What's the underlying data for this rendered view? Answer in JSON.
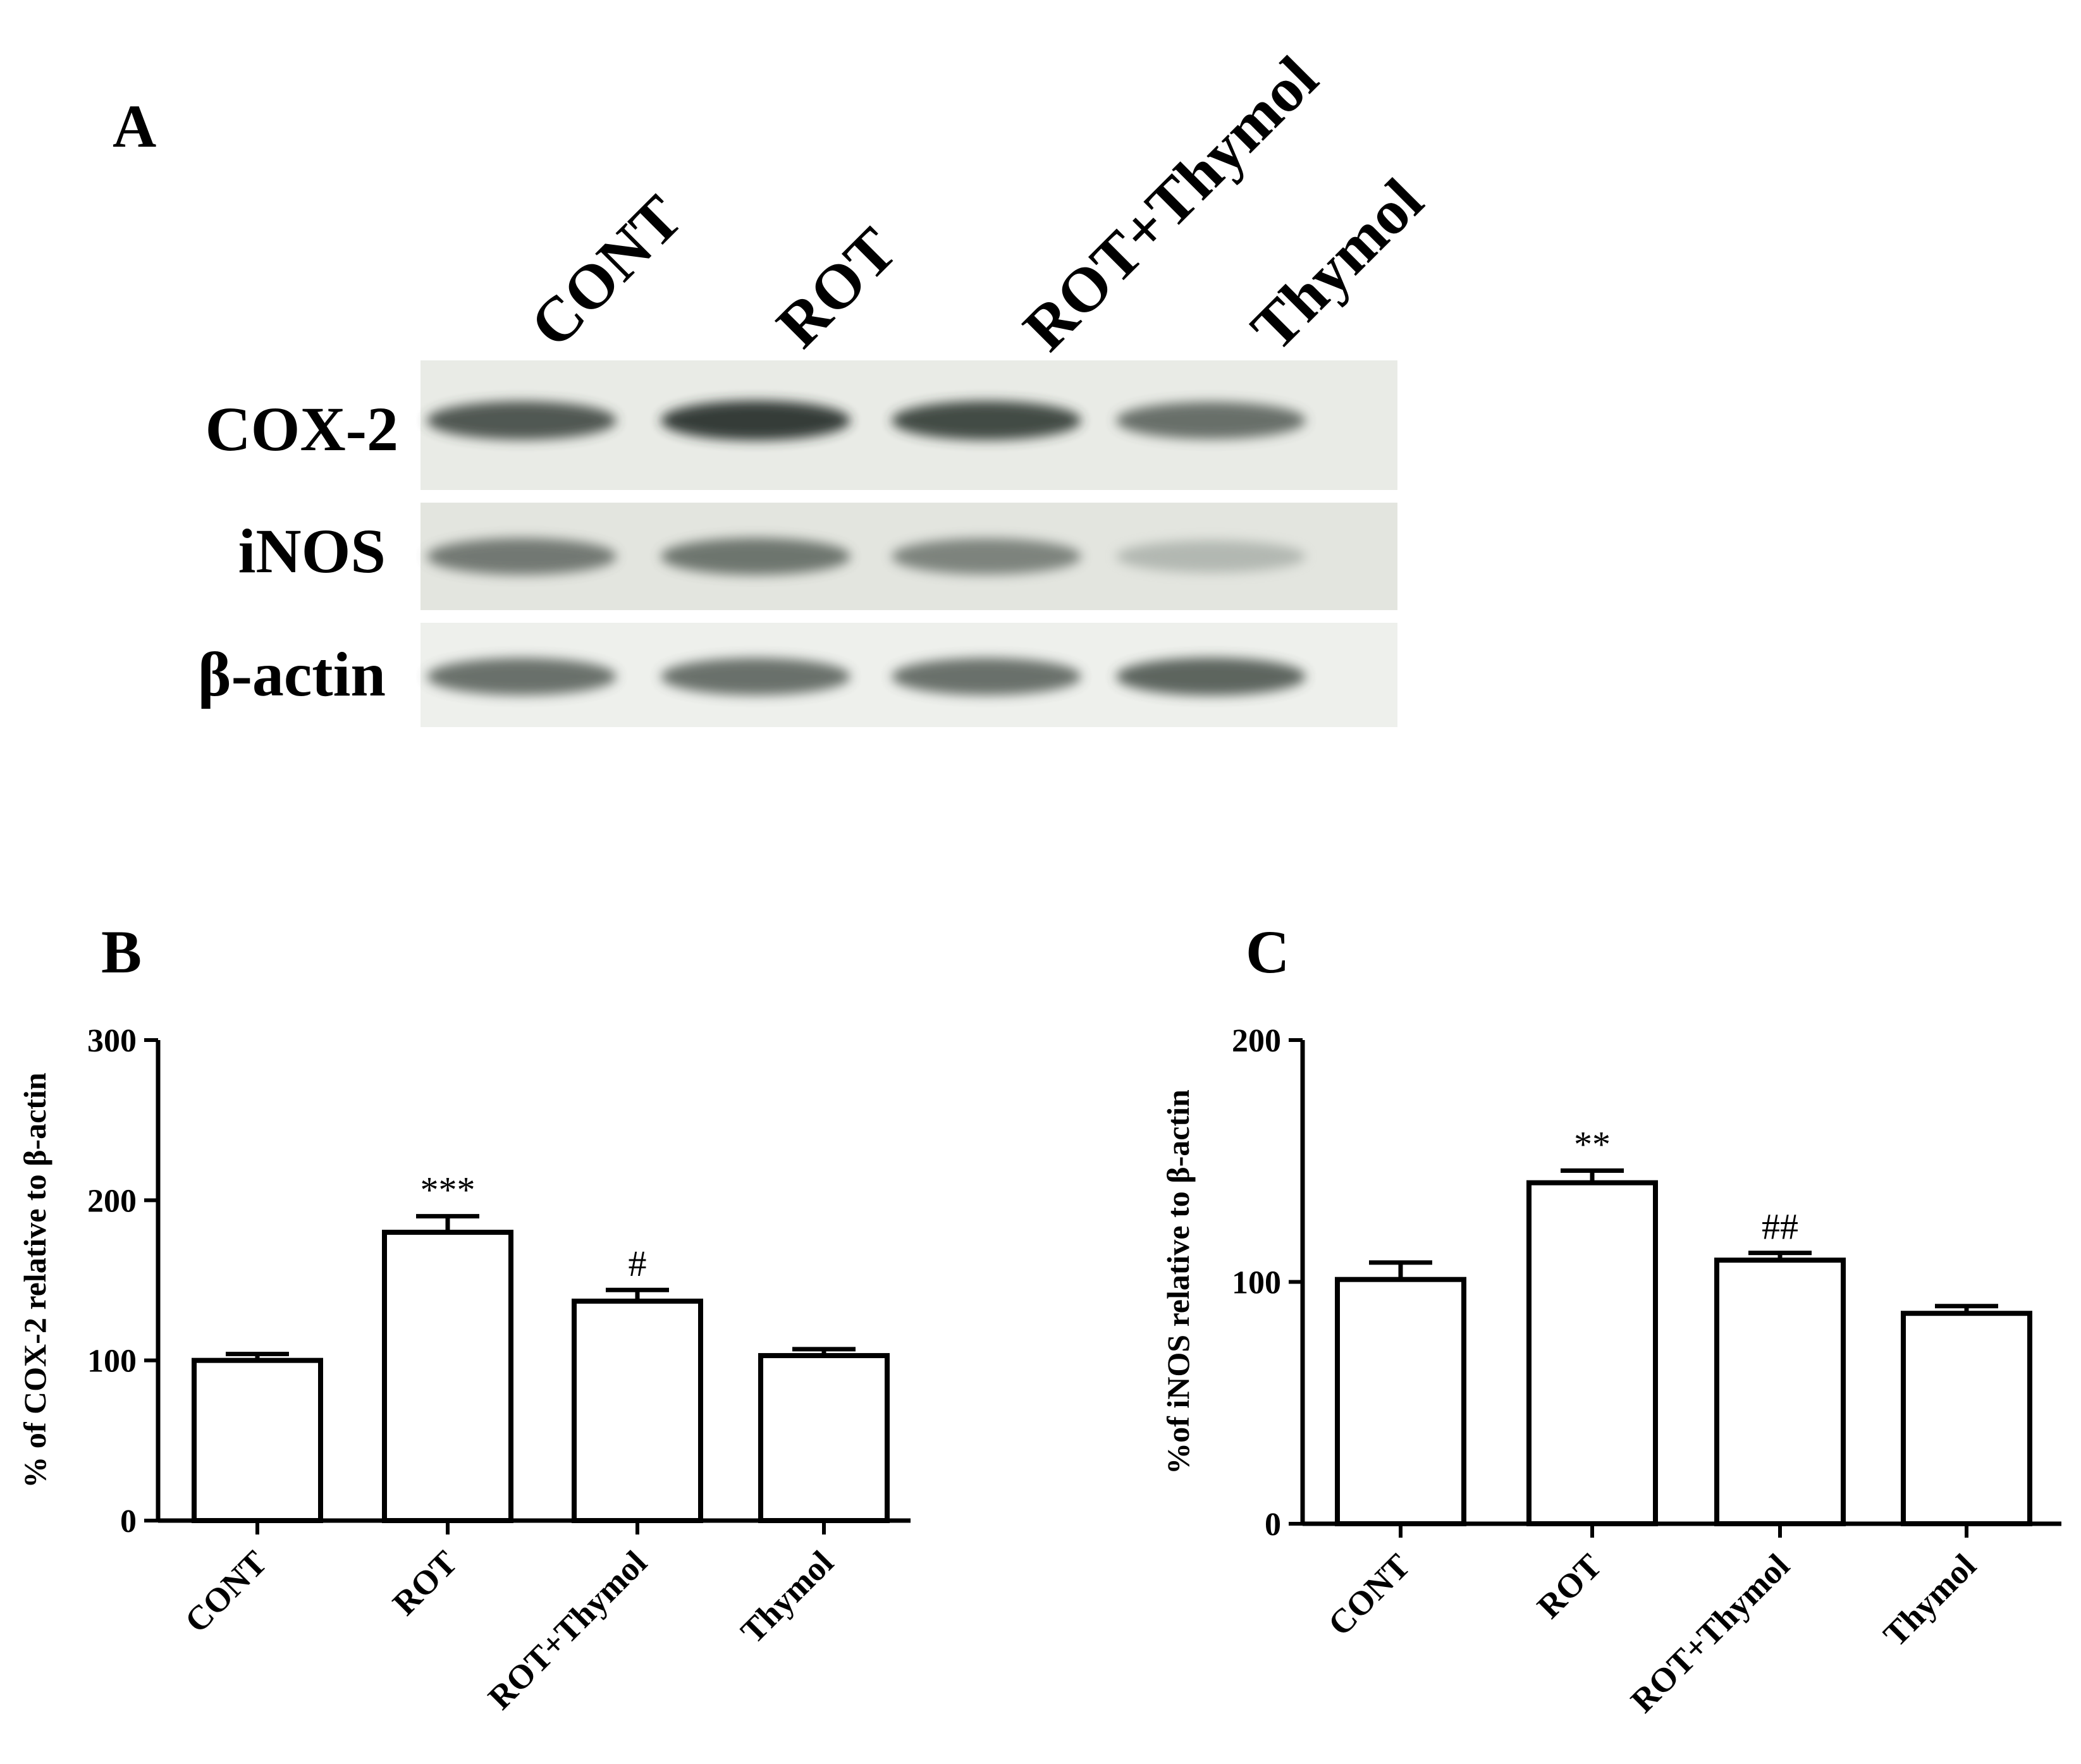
{
  "panel_a": {
    "letter": "A",
    "lanes": [
      "CONT",
      "ROT",
      "ROT+Thymol",
      "Thymol"
    ],
    "blot_rows": [
      {
        "label": "COX-2",
        "band_intensity": [
          0.85,
          0.95,
          0.9,
          0.75
        ]
      },
      {
        "label": "iNOS",
        "band_intensity": [
          0.7,
          0.72,
          0.65,
          0.35
        ]
      },
      {
        "label": "β-actin",
        "band_intensity": [
          0.75,
          0.75,
          0.75,
          0.8
        ]
      }
    ]
  },
  "chart_data": [
    {
      "panel": "B",
      "type": "bar",
      "categories": [
        "CONT",
        "ROT",
        "ROT+Thymol",
        "Thymol"
      ],
      "values": [
        100,
        180,
        137,
        103
      ],
      "errors": [
        4,
        10,
        7,
        4
      ],
      "significance": [
        "",
        "***",
        "#",
        ""
      ],
      "ylabel": "% of  COX-2 relative to β-actin",
      "xlabel": "",
      "ylim": [
        0,
        300
      ],
      "yticks": [
        "0",
        "100",
        "200",
        "300"
      ],
      "grid": false
    },
    {
      "panel": "C",
      "type": "bar",
      "categories": [
        "CONT",
        "ROT",
        "ROT+Thymol",
        "Thymol"
      ],
      "values": [
        101,
        141,
        109,
        87
      ],
      "errors": [
        7,
        5,
        3,
        3
      ],
      "significance": [
        "",
        "**",
        "##",
        ""
      ],
      "ylabel": "%of iNOS relative to β-actin",
      "xlabel": "",
      "ylim": [
        0,
        200
      ],
      "yticks": [
        "0",
        "100",
        "200"
      ],
      "grid": false
    }
  ]
}
